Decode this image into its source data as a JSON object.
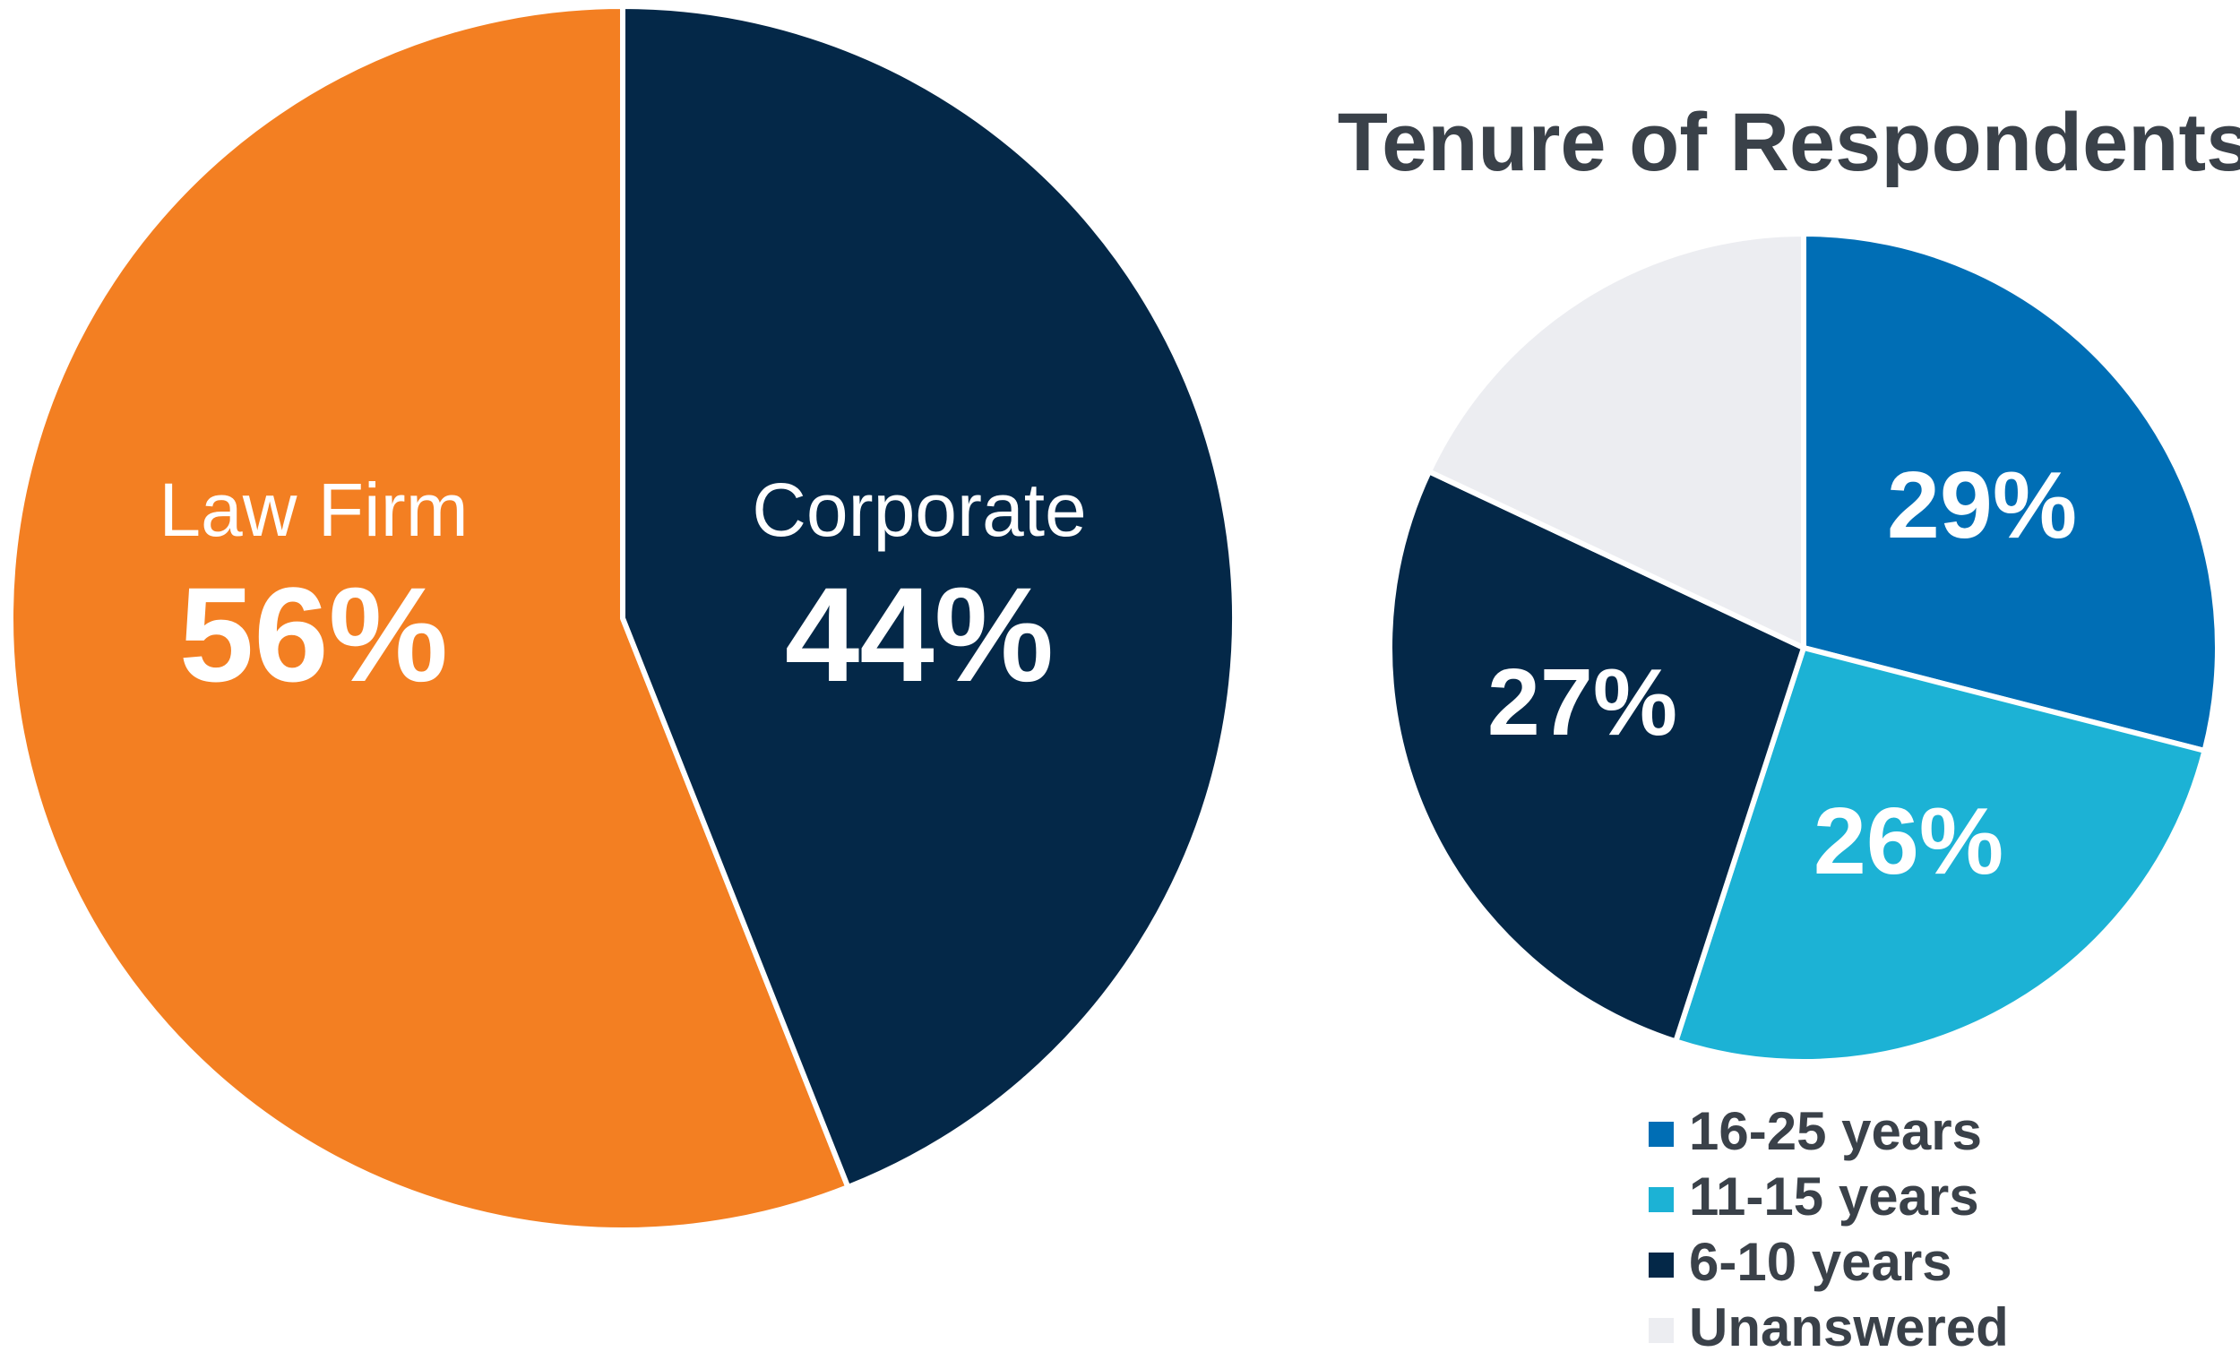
{
  "chart_data": [
    {
      "type": "pie",
      "title": "",
      "slices": [
        {
          "label": "Law Firm",
          "value": 56,
          "value_label": "56%",
          "color": "#f37f22"
        },
        {
          "label": "Corporate",
          "value": 44,
          "value_label": "44%",
          "color": "#042848"
        }
      ],
      "start": "12 o'clock, counterclockwise",
      "legend": "none"
    },
    {
      "type": "pie",
      "title": "Tenure of Respondents",
      "slices": [
        {
          "label": "16-25 years",
          "value": 29,
          "value_label": "29%",
          "color": "#006eb5"
        },
        {
          "label": "11-15 years",
          "value": 26,
          "value_label": "26%",
          "color": "#1cb2d5"
        },
        {
          "label": "6-10 years",
          "value": 27,
          "value_label": "27%",
          "color": "#042848"
        },
        {
          "label": "Unanswered",
          "value": 18,
          "value_label": "",
          "color": "#ecedf1"
        }
      ],
      "start": "12 o'clock, clockwise",
      "legend": "bottom-right"
    }
  ]
}
